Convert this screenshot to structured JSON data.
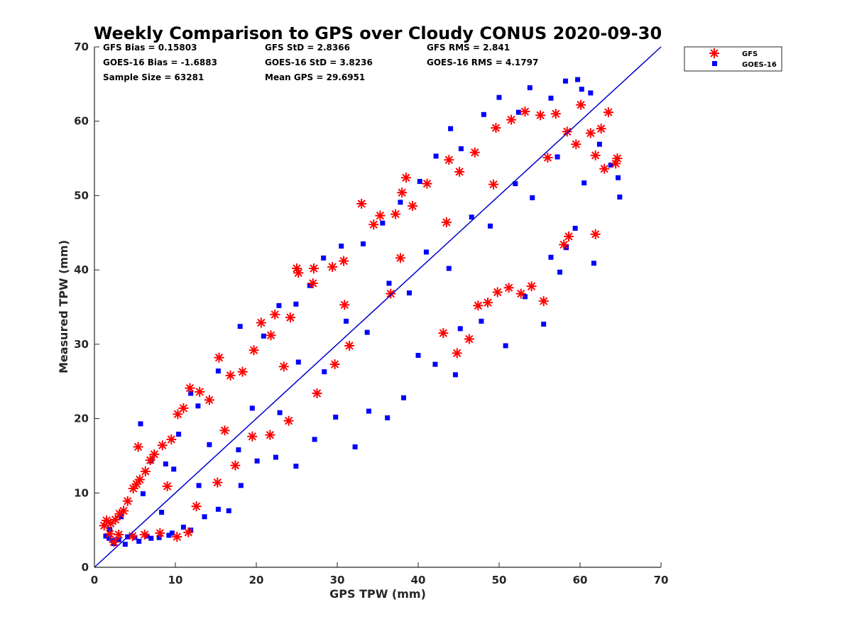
{
  "colors": {
    "gfs": "#ff0000",
    "goes": "#0000ff",
    "one_to_one_line": "#0000cc",
    "axis": "#262626"
  },
  "chart_data": {
    "type": "scatter",
    "title": "Weekly Comparison to GPS over Cloudy CONUS 2020-09-30",
    "xlabel": "GPS TPW (mm)",
    "ylabel": "Measured TPW (mm)",
    "xlim": [
      0,
      70
    ],
    "ylim": [
      0,
      70
    ],
    "xticks": [
      "0",
      "10",
      "20",
      "30",
      "40",
      "50",
      "60",
      "70"
    ],
    "yticks": [
      "0",
      "10",
      "20",
      "30",
      "40",
      "50",
      "60",
      "70"
    ],
    "grid": false,
    "legend_position": "outside top-right",
    "reference_line": {
      "x": [
        0,
        70
      ],
      "y": [
        0,
        70
      ]
    },
    "stats": [
      "GFS Bias = 0.15803",
      "GFS StD = 2.8366",
      "GFS RMS = 2.841",
      "GOES-16 Bias = -1.6883",
      "GOES-16 StD = 3.8236",
      "GOES-16 RMS = 4.1797",
      "Sample Size = 63281",
      "Mean GPS = 29.6951"
    ],
    "series": [
      {
        "name": "GFS",
        "marker": "asterisk",
        "points": [
          [
            1.2,
            5.6
          ],
          [
            1.5,
            6.3
          ],
          [
            2.0,
            5.9
          ],
          [
            2.6,
            6.4
          ],
          [
            3.1,
            7.2
          ],
          [
            3.6,
            7.6
          ],
          [
            4.1,
            8.9
          ],
          [
            4.8,
            10.6
          ],
          [
            5.2,
            11.2
          ],
          [
            5.6,
            11.8
          ],
          [
            5.4,
            16.2
          ],
          [
            6.3,
            12.9
          ],
          [
            6.9,
            14.4
          ],
          [
            7.4,
            15.2
          ],
          [
            8.4,
            16.4
          ],
          [
            9.5,
            17.2
          ],
          [
            10.3,
            20.6
          ],
          [
            11.0,
            21.4
          ],
          [
            11.8,
            24.1
          ],
          [
            13.0,
            23.6
          ],
          [
            14.2,
            22.5
          ],
          [
            15.4,
            28.2
          ],
          [
            16.8,
            25.8
          ],
          [
            18.3,
            26.3
          ],
          [
            19.7,
            29.2
          ],
          [
            20.6,
            32.9
          ],
          [
            21.8,
            31.2
          ],
          [
            22.3,
            34.0
          ],
          [
            24.2,
            33.6
          ],
          [
            25.0,
            40.2
          ],
          [
            25.2,
            39.6
          ],
          [
            27.1,
            40.2
          ],
          [
            27.0,
            38.2
          ],
          [
            29.4,
            40.4
          ],
          [
            30.8,
            41.2
          ],
          [
            33.0,
            48.9
          ],
          [
            34.5,
            46.1
          ],
          [
            35.3,
            47.3
          ],
          [
            37.2,
            47.5
          ],
          [
            38.0,
            50.4
          ],
          [
            38.5,
            52.4
          ],
          [
            39.3,
            48.6
          ],
          [
            41.1,
            51.6
          ],
          [
            43.8,
            54.8
          ],
          [
            45.1,
            53.2
          ],
          [
            47.0,
            55.8
          ],
          [
            49.6,
            59.1
          ],
          [
            51.5,
            60.2
          ],
          [
            53.2,
            61.3
          ],
          [
            55.1,
            60.8
          ],
          [
            57.0,
            61.0
          ],
          [
            58.4,
            58.6
          ],
          [
            59.5,
            56.9
          ],
          [
            60.1,
            62.2
          ],
          [
            61.3,
            58.4
          ],
          [
            61.9,
            55.4
          ],
          [
            62.6,
            59.0
          ],
          [
            63.5,
            61.2
          ],
          [
            63.0,
            53.6
          ],
          [
            64.4,
            54.3
          ],
          [
            64.6,
            55.0
          ],
          [
            61.9,
            44.8
          ],
          [
            58.6,
            44.5
          ],
          [
            58.0,
            43.4
          ],
          [
            55.5,
            35.8
          ],
          [
            54.0,
            37.8
          ],
          [
            52.7,
            36.8
          ],
          [
            51.2,
            37.6
          ],
          [
            49.8,
            37.0
          ],
          [
            48.6,
            35.6
          ],
          [
            47.4,
            35.2
          ],
          [
            46.3,
            30.7
          ],
          [
            44.8,
            28.8
          ],
          [
            43.1,
            31.5
          ],
          [
            36.6,
            36.8
          ],
          [
            31.5,
            29.8
          ],
          [
            29.7,
            27.3
          ],
          [
            27.5,
            23.4
          ],
          [
            24.0,
            19.7
          ],
          [
            21.7,
            17.8
          ],
          [
            19.5,
            17.6
          ],
          [
            17.4,
            13.7
          ],
          [
            15.2,
            11.4
          ],
          [
            12.6,
            8.2
          ],
          [
            11.6,
            4.7
          ],
          [
            10.2,
            4.1
          ],
          [
            8.1,
            4.6
          ],
          [
            6.2,
            4.4
          ],
          [
            4.7,
            4.2
          ],
          [
            3.0,
            4.4
          ],
          [
            2.4,
            3.4
          ],
          [
            1.9,
            4.5
          ],
          [
            9.0,
            10.9
          ],
          [
            16.1,
            18.4
          ],
          [
            23.4,
            27.0
          ],
          [
            30.9,
            35.3
          ],
          [
            37.8,
            41.6
          ],
          [
            43.5,
            46.4
          ],
          [
            49.3,
            51.5
          ],
          [
            56.0,
            55.1
          ]
        ]
      },
      {
        "name": "GOES-16",
        "marker": "square",
        "points": [
          [
            1.4,
            4.2
          ],
          [
            1.8,
            3.9
          ],
          [
            2.3,
            3.6
          ],
          [
            3.0,
            3.7
          ],
          [
            4.1,
            4.1
          ],
          [
            5.0,
            4.0
          ],
          [
            6.5,
            4.2
          ],
          [
            8.0,
            4.0
          ],
          [
            9.6,
            4.6
          ],
          [
            11.0,
            5.4
          ],
          [
            5.7,
            19.3
          ],
          [
            7.0,
            14.3
          ],
          [
            8.8,
            13.9
          ],
          [
            10.4,
            17.9
          ],
          [
            11.9,
            23.4
          ],
          [
            12.8,
            21.7
          ],
          [
            15.3,
            26.4
          ],
          [
            18.0,
            32.4
          ],
          [
            20.9,
            31.1
          ],
          [
            22.8,
            35.2
          ],
          [
            24.9,
            35.4
          ],
          [
            26.6,
            37.9
          ],
          [
            28.3,
            41.6
          ],
          [
            30.5,
            43.2
          ],
          [
            33.2,
            43.5
          ],
          [
            35.6,
            46.3
          ],
          [
            37.8,
            49.1
          ],
          [
            40.2,
            51.9
          ],
          [
            42.2,
            55.3
          ],
          [
            44.0,
            59.0
          ],
          [
            45.3,
            56.3
          ],
          [
            48.1,
            60.9
          ],
          [
            50.0,
            63.2
          ],
          [
            52.4,
            61.2
          ],
          [
            53.8,
            64.5
          ],
          [
            56.4,
            63.1
          ],
          [
            58.2,
            65.4
          ],
          [
            59.7,
            65.6
          ],
          [
            60.2,
            64.3
          ],
          [
            61.3,
            63.8
          ],
          [
            62.4,
            56.9
          ],
          [
            63.8,
            54.1
          ],
          [
            64.7,
            52.4
          ],
          [
            64.9,
            49.8
          ],
          [
            61.7,
            40.9
          ],
          [
            60.5,
            51.7
          ],
          [
            59.4,
            45.6
          ],
          [
            58.3,
            43.0
          ],
          [
            57.5,
            39.7
          ],
          [
            56.4,
            41.7
          ],
          [
            55.5,
            32.7
          ],
          [
            53.2,
            36.4
          ],
          [
            50.8,
            29.8
          ],
          [
            47.8,
            33.1
          ],
          [
            45.2,
            32.1
          ],
          [
            44.6,
            25.9
          ],
          [
            42.1,
            27.3
          ],
          [
            40.0,
            28.5
          ],
          [
            38.2,
            22.8
          ],
          [
            36.2,
            20.1
          ],
          [
            33.9,
            21.0
          ],
          [
            32.2,
            16.2
          ],
          [
            29.8,
            20.2
          ],
          [
            27.2,
            17.2
          ],
          [
            24.9,
            13.6
          ],
          [
            22.4,
            14.8
          ],
          [
            20.1,
            14.3
          ],
          [
            18.1,
            11.0
          ],
          [
            16.6,
            7.6
          ],
          [
            15.3,
            7.8
          ],
          [
            13.6,
            6.8
          ],
          [
            11.9,
            5.0
          ],
          [
            9.2,
            4.3
          ],
          [
            7.0,
            3.9
          ],
          [
            5.5,
            3.5
          ],
          [
            3.8,
            3.1
          ],
          [
            2.4,
            3.2
          ],
          [
            1.9,
            5.1
          ],
          [
            3.3,
            6.8
          ],
          [
            6.0,
            9.9
          ],
          [
            9.8,
            13.2
          ],
          [
            14.2,
            16.5
          ],
          [
            19.5,
            21.4
          ],
          [
            25.2,
            27.6
          ],
          [
            31.1,
            33.1
          ],
          [
            36.4,
            38.2
          ],
          [
            41.0,
            42.4
          ],
          [
            46.6,
            47.1
          ],
          [
            52.0,
            51.6
          ],
          [
            57.2,
            55.2
          ],
          [
            8.3,
            7.4
          ],
          [
            12.9,
            11.0
          ],
          [
            17.8,
            15.8
          ],
          [
            22.9,
            20.8
          ],
          [
            28.4,
            26.3
          ],
          [
            33.7,
            31.6
          ],
          [
            38.9,
            36.9
          ],
          [
            43.8,
            40.2
          ],
          [
            48.9,
            45.9
          ],
          [
            54.1,
            49.7
          ]
        ]
      }
    ]
  }
}
